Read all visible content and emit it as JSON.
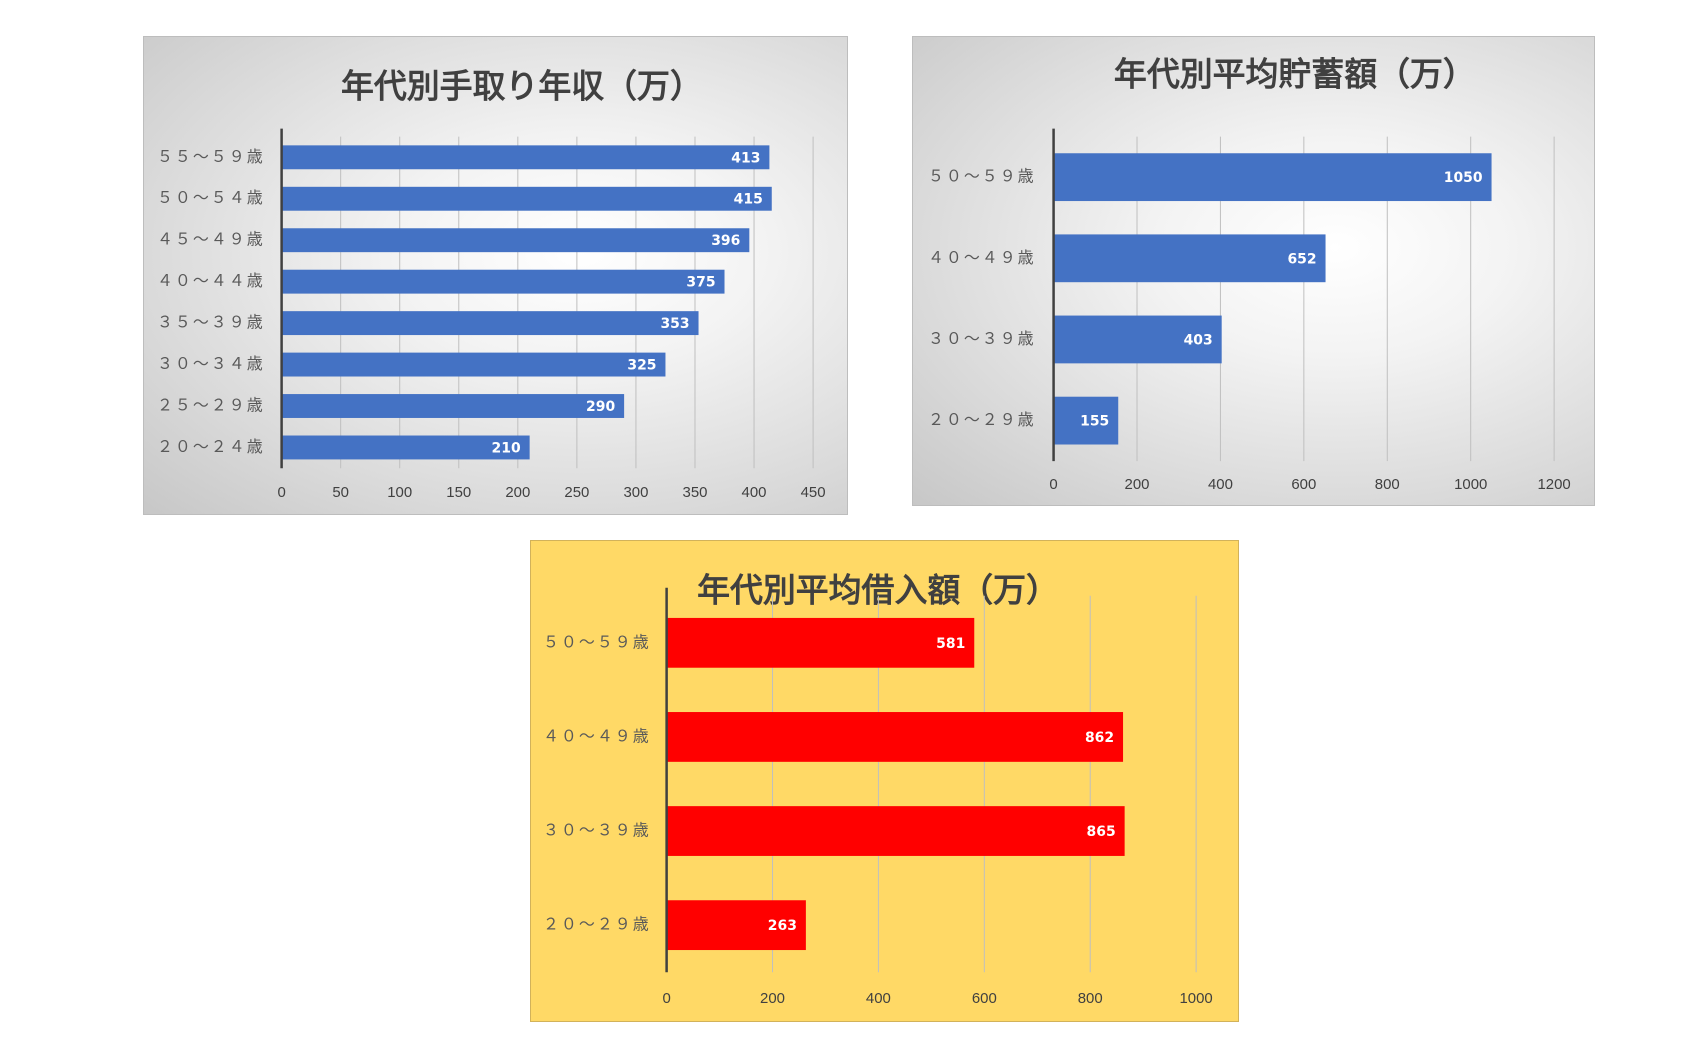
{
  "chart_data": [
    {
      "type": "bar",
      "orientation": "horizontal",
      "title": "年代別手取り年収（万）",
      "categories": [
        "５５～５９歳",
        "５０～５４歳",
        "４５～４９歳",
        "４０～４４歳",
        "３５～３９歳",
        "３０～３４歳",
        "２５～２９歳",
        "２０～２４歳"
      ],
      "values": [
        413,
        415,
        396,
        375,
        353,
        325,
        290,
        210
      ],
      "xlim": [
        0,
        450
      ],
      "xticks": [
        0,
        50,
        100,
        150,
        200,
        250,
        300,
        350,
        400,
        450
      ],
      "grid": true,
      "data_labels": true,
      "bar_color": "#4472c4",
      "background": "gray-gradient"
    },
    {
      "type": "bar",
      "orientation": "horizontal",
      "title": "年代別平均貯蓄額（万）",
      "categories": [
        "５０～５９歳",
        "４０～４９歳",
        "３０～３９歳",
        "２０～２９歳"
      ],
      "values": [
        1050,
        652,
        403,
        155
      ],
      "xlim": [
        0,
        1200
      ],
      "xticks": [
        0,
        200,
        400,
        600,
        800,
        1000,
        1200
      ],
      "grid": true,
      "data_labels": true,
      "bar_color": "#4472c4",
      "background": "gray-gradient"
    },
    {
      "type": "bar",
      "orientation": "horizontal",
      "title": "年代別平均借入額（万）",
      "categories": [
        "５０～５９歳",
        "４０～４９歳",
        "３０～３９歳",
        "２０～２９歳"
      ],
      "values": [
        581,
        862,
        865,
        263
      ],
      "xlim": [
        0,
        1000
      ],
      "xticks": [
        0,
        200,
        400,
        600,
        800,
        1000
      ],
      "grid": true,
      "data_labels": true,
      "bar_color": "#ff0000",
      "background": "#ffd966"
    }
  ]
}
